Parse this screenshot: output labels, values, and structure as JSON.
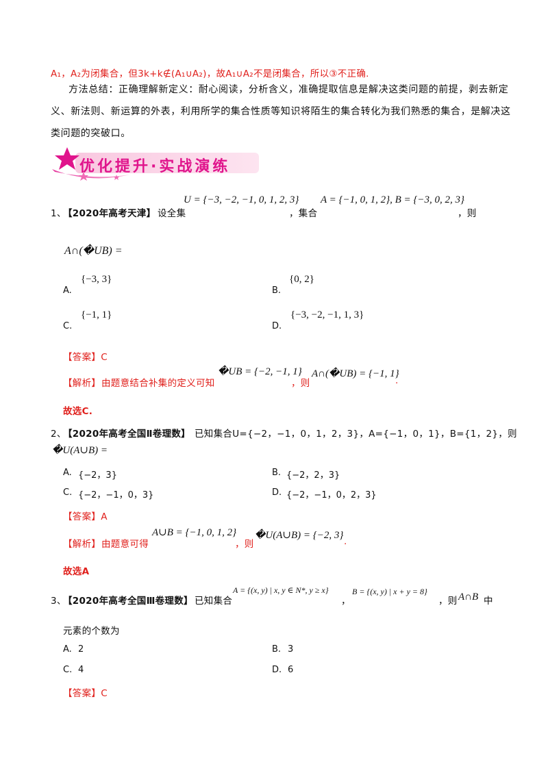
{
  "intro": {
    "red_line": "A₁，A₂为闭集合，但3k+k∉(A₁∪A₂)，故A₁∪A₂不是闭集合，所以③不正确.",
    "method_line1": "方法总结：正确理解新定义：耐心阅读，分析含义，准确提取信息是解决这类问题的前提，剥去新定",
    "method_line2": "义、新法则、新运算的外表，利用所学的集合性质等知识将陌生的集合转化为我们熟悉的集合，是解决这",
    "method_line3": "类问题的突破口。"
  },
  "banner": {
    "title": "优化提升·实战演练"
  },
  "q1": {
    "num": "1、",
    "source": "【2020年高考天津】",
    "text1": "设全集",
    "U_expr": "U = {−3, −2, −1, 0, 1, 2, 3}",
    "text2": "，集合",
    "AB_expr": "A = {−1, 0, 1, 2}, B = {−3, 0, 2, 3}",
    "text3": "，则",
    "expr": "A∩(�UB) =",
    "options": [
      {
        "label": "A.",
        "value": "{−3, 3}"
      },
      {
        "label": "B.",
        "value": "{0, 2}"
      },
      {
        "label": "C.",
        "value": "{−1, 1}"
      },
      {
        "label": "D.",
        "value": "{−3, −2, −1, 1, 3}"
      }
    ],
    "answer": "【答案】C",
    "analysis_tag": "【解析】",
    "analysis_text": "由题意结合补集的定义可知",
    "analysis_expr1": "�UB = {−2, −1, 1}",
    "analysis_mid": "，则",
    "analysis_expr2": "A∩(�UB) = {−1, 1}",
    "analysis_end": ".",
    "conclusion": "故选C."
  },
  "q2": {
    "num": "2、",
    "source": "【2020年高考全国Ⅱ卷理数】",
    "text": "已知集合U={−2，−1，0，1，2，3}，A={−1，0，1}，B={1，2}，则",
    "expr": "�U(A∪B) =",
    "options": [
      {
        "label": "A.",
        "value": "{−2，3}"
      },
      {
        "label": "B.",
        "value": "{−2，2，3}"
      },
      {
        "label": "C.",
        "value": "{−2，−1，0，3}"
      },
      {
        "label": "D.",
        "value": "{−2，−1，0，2，3}"
      }
    ],
    "answer": "【答案】A",
    "analysis_tag": "【解析】",
    "analysis_text": "由题意可得",
    "analysis_expr1": "A∪B = {−1, 0, 1, 2}",
    "analysis_mid": "，则",
    "analysis_expr2": "�U(A∪B) = {−2, 3}",
    "analysis_end": ".",
    "conclusion": "故选A"
  },
  "q3": {
    "num": "3、",
    "source": "【2020年高考全国Ⅲ卷理数】",
    "text1": "已知集合",
    "A_expr": "A = {(x, y) | x, y ∈ N*, y ≥ x}",
    "comma": "，",
    "B_expr": "B = {(x, y) | x + y = 8}",
    "text2": "，则",
    "AB_expr": "A∩B",
    "text3": "中",
    "text4": "元素的个数为",
    "options": [
      {
        "label": "A.",
        "value": "2"
      },
      {
        "label": "B.",
        "value": "3"
      },
      {
        "label": "C.",
        "value": "4"
      },
      {
        "label": "D.",
        "value": "6"
      }
    ],
    "answer": "【答案】C"
  }
}
